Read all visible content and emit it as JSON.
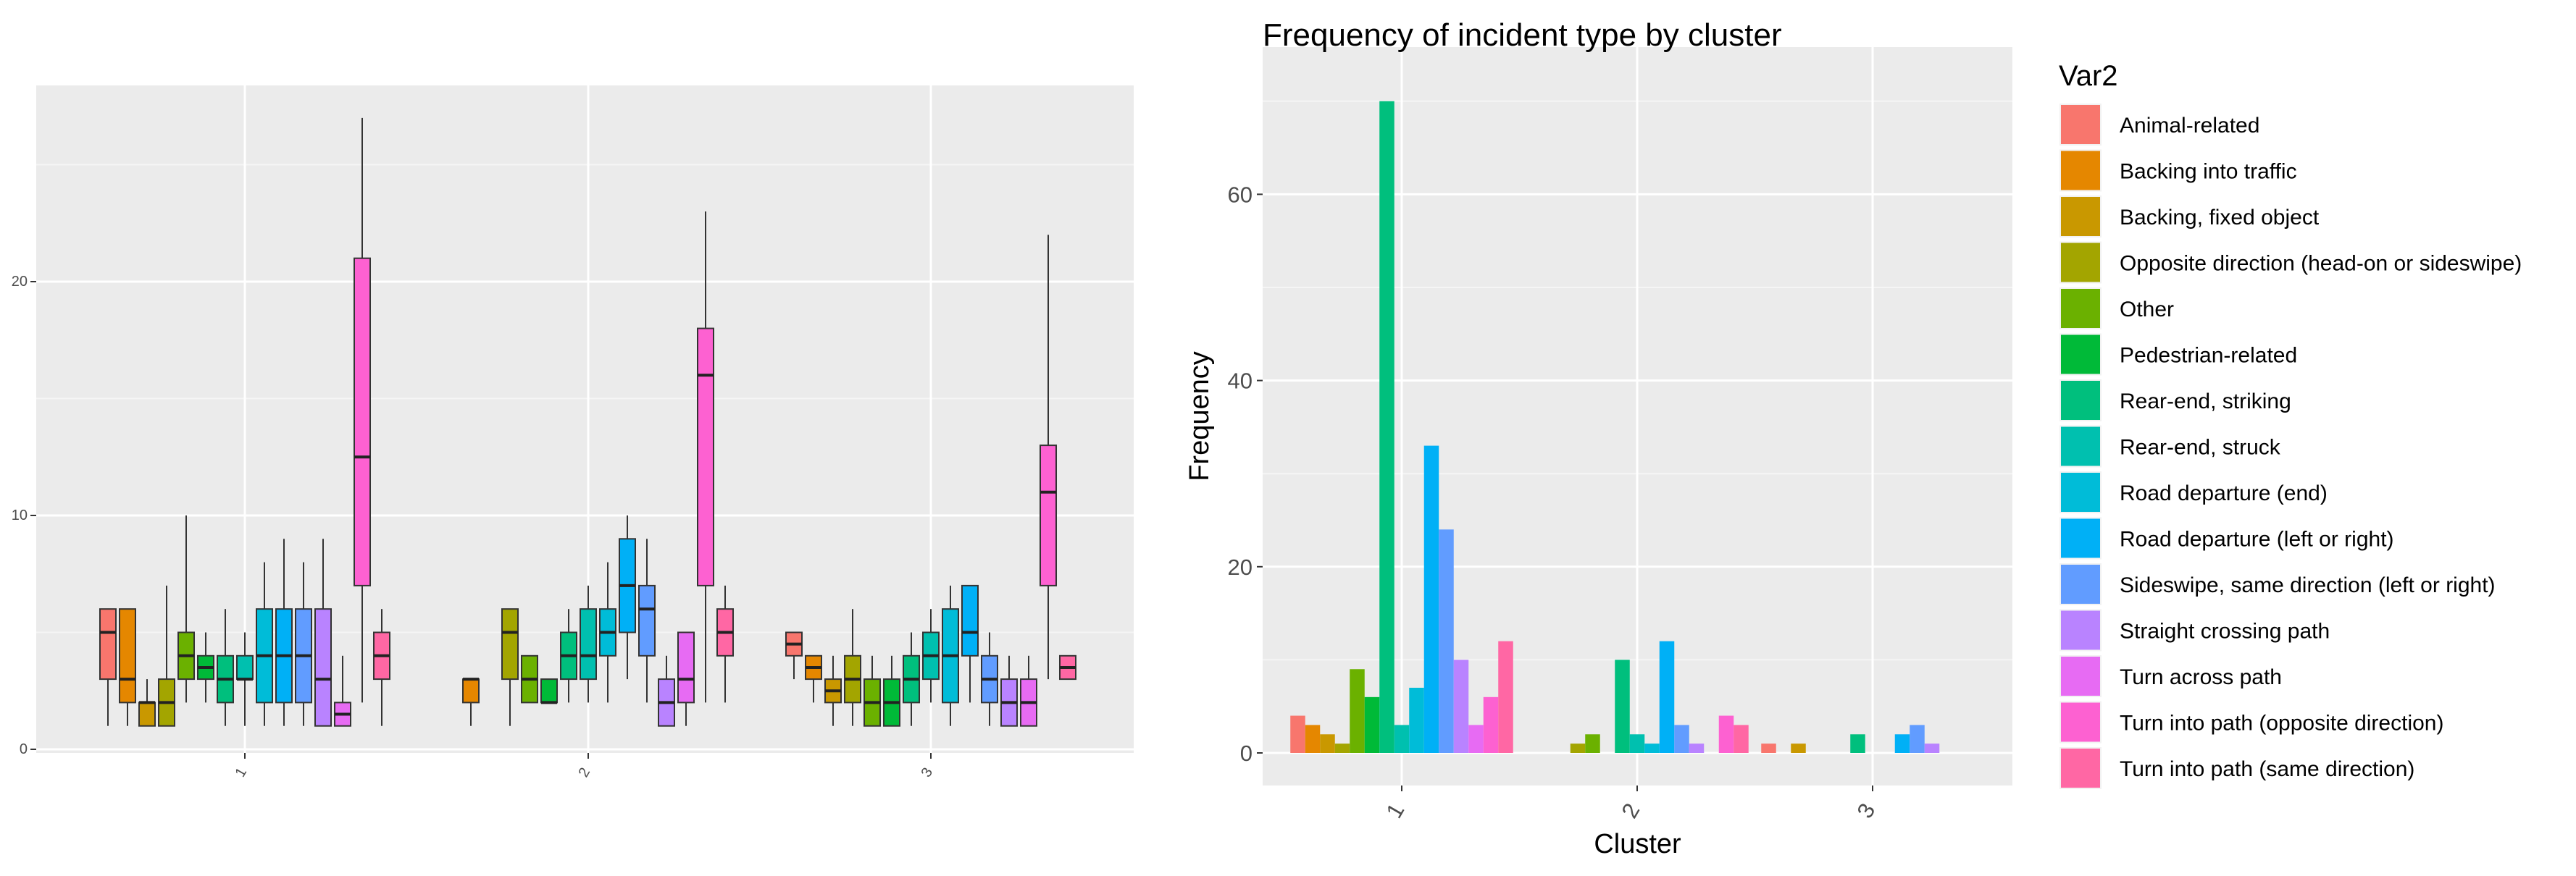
{
  "palette": {
    "panel_bg": "#EBEBEB",
    "grid_major": "#FFFFFF",
    "grid_minor": "#F5F5F5",
    "text": "#000000",
    "tick_text": "#4D4D4D"
  },
  "chart_data": [
    {
      "type": "boxplot",
      "title": "",
      "xlabel": "",
      "ylabel": "",
      "categories": [
        "1",
        "2",
        "3"
      ],
      "ylim": [
        0,
        28
      ],
      "yticks": [
        0,
        10,
        20
      ],
      "grid": true,
      "color_groups": [
        "Animal-related",
        "Backing into traffic",
        "Backing, fixed object",
        "Opposite direction (head-on or sideswipe)",
        "Other",
        "Pedestrian-related",
        "Rear-end, striking",
        "Rear-end, struck",
        "Road departure (end)",
        "Road departure (left or right)",
        "Sideswipe, same direction (left or right)",
        "Straight crossing path",
        "Turn across path",
        "Turn into path (opposite direction)",
        "Turn into path (same direction)"
      ],
      "boxes": [
        {
          "cluster": "1",
          "group": 0,
          "q1": 3,
          "median": 5,
          "q3": 6,
          "whisker_low": 1,
          "whisker_high": 6
        },
        {
          "cluster": "1",
          "group": 1,
          "q1": 2,
          "median": 3,
          "q3": 6,
          "whisker_low": 1,
          "whisker_high": 6
        },
        {
          "cluster": "1",
          "group": 2,
          "q1": 1,
          "median": 2,
          "q3": 2,
          "whisker_low": 1,
          "whisker_high": 3
        },
        {
          "cluster": "1",
          "group": 3,
          "q1": 1,
          "median": 2,
          "q3": 3,
          "whisker_low": 1,
          "whisker_high": 7
        },
        {
          "cluster": "1",
          "group": 4,
          "q1": 3,
          "median": 4,
          "q3": 5,
          "whisker_low": 2,
          "whisker_high": 10
        },
        {
          "cluster": "1",
          "group": 5,
          "q1": 3,
          "median": 3.5,
          "q3": 4,
          "whisker_low": 2,
          "whisker_high": 5
        },
        {
          "cluster": "1",
          "group": 6,
          "q1": 2,
          "median": 3,
          "q3": 4,
          "whisker_low": 1,
          "whisker_high": 6
        },
        {
          "cluster": "1",
          "group": 7,
          "q1": 3,
          "median": 3,
          "q3": 4,
          "whisker_low": 1,
          "whisker_high": 5
        },
        {
          "cluster": "1",
          "group": 8,
          "q1": 2,
          "median": 4,
          "q3": 6,
          "whisker_low": 1,
          "whisker_high": 8
        },
        {
          "cluster": "1",
          "group": 9,
          "q1": 2,
          "median": 4,
          "q3": 6,
          "whisker_low": 1,
          "whisker_high": 9
        },
        {
          "cluster": "1",
          "group": 10,
          "q1": 2,
          "median": 4,
          "q3": 6,
          "whisker_low": 1,
          "whisker_high": 8
        },
        {
          "cluster": "1",
          "group": 11,
          "q1": 1,
          "median": 3,
          "q3": 6,
          "whisker_low": 1,
          "whisker_high": 9
        },
        {
          "cluster": "1",
          "group": 12,
          "q1": 1,
          "median": 1.5,
          "q3": 2,
          "whisker_low": 1,
          "whisker_high": 4
        },
        {
          "cluster": "1",
          "group": 13,
          "q1": 7,
          "median": 12.5,
          "q3": 21,
          "whisker_low": 2,
          "whisker_high": 27
        },
        {
          "cluster": "1",
          "group": 14,
          "q1": 3,
          "median": 4,
          "q3": 5,
          "whisker_low": 1,
          "whisker_high": 6
        },
        {
          "cluster": "2",
          "group": 1,
          "q1": 2,
          "median": 3,
          "q3": 3,
          "whisker_low": 1,
          "whisker_high": 3
        },
        {
          "cluster": "2",
          "group": 3,
          "q1": 3,
          "median": 5,
          "q3": 6,
          "whisker_low": 1,
          "whisker_high": 6
        },
        {
          "cluster": "2",
          "group": 4,
          "q1": 2,
          "median": 3,
          "q3": 4,
          "whisker_low": 2,
          "whisker_high": 4
        },
        {
          "cluster": "2",
          "group": 5,
          "q1": 2,
          "median": 2,
          "q3": 3,
          "whisker_low": 2,
          "whisker_high": 3
        },
        {
          "cluster": "2",
          "group": 6,
          "q1": 3,
          "median": 4,
          "q3": 5,
          "whisker_low": 2,
          "whisker_high": 6
        },
        {
          "cluster": "2",
          "group": 7,
          "q1": 3,
          "median": 4,
          "q3": 6,
          "whisker_low": 2,
          "whisker_high": 7
        },
        {
          "cluster": "2",
          "group": 8,
          "q1": 4,
          "median": 5,
          "q3": 6,
          "whisker_low": 2,
          "whisker_high": 8
        },
        {
          "cluster": "2",
          "group": 9,
          "q1": 5,
          "median": 7,
          "q3": 9,
          "whisker_low": 3,
          "whisker_high": 10
        },
        {
          "cluster": "2",
          "group": 10,
          "q1": 4,
          "median": 6,
          "q3": 7,
          "whisker_low": 2,
          "whisker_high": 9
        },
        {
          "cluster": "2",
          "group": 11,
          "q1": 1,
          "median": 2,
          "q3": 3,
          "whisker_low": 1,
          "whisker_high": 4
        },
        {
          "cluster": "2",
          "group": 12,
          "q1": 2,
          "median": 3,
          "q3": 5,
          "whisker_low": 1,
          "whisker_high": 5
        },
        {
          "cluster": "2",
          "group": 13,
          "q1": 7,
          "median": 16,
          "q3": 18,
          "whisker_low": 2,
          "whisker_high": 23
        },
        {
          "cluster": "2",
          "group": 14,
          "q1": 4,
          "median": 5,
          "q3": 6,
          "whisker_low": 2,
          "whisker_high": 7
        },
        {
          "cluster": "3",
          "group": 0,
          "q1": 4,
          "median": 4.5,
          "q3": 5,
          "whisker_low": 3,
          "whisker_high": 5
        },
        {
          "cluster": "3",
          "group": 1,
          "q1": 3,
          "median": 3.5,
          "q3": 4,
          "whisker_low": 2,
          "whisker_high": 4
        },
        {
          "cluster": "3",
          "group": 2,
          "q1": 2,
          "median": 2.5,
          "q3": 3,
          "whisker_low": 1,
          "whisker_high": 4
        },
        {
          "cluster": "3",
          "group": 3,
          "q1": 2,
          "median": 3,
          "q3": 4,
          "whisker_low": 1,
          "whisker_high": 6
        },
        {
          "cluster": "3",
          "group": 4,
          "q1": 1,
          "median": 2,
          "q3": 3,
          "whisker_low": 1,
          "whisker_high": 4
        },
        {
          "cluster": "3",
          "group": 5,
          "q1": 1,
          "median": 2,
          "q3": 3,
          "whisker_low": 1,
          "whisker_high": 4
        },
        {
          "cluster": "3",
          "group": 6,
          "q1": 2,
          "median": 3,
          "q3": 4,
          "whisker_low": 1,
          "whisker_high": 5
        },
        {
          "cluster": "3",
          "group": 7,
          "q1": 3,
          "median": 4,
          "q3": 5,
          "whisker_low": 2,
          "whisker_high": 6
        },
        {
          "cluster": "3",
          "group": 8,
          "q1": 2,
          "median": 4,
          "q3": 6,
          "whisker_low": 1,
          "whisker_high": 7
        },
        {
          "cluster": "3",
          "group": 9,
          "q1": 4,
          "median": 5,
          "q3": 7,
          "whisker_low": 2,
          "whisker_high": 7
        },
        {
          "cluster": "3",
          "group": 10,
          "q1": 2,
          "median": 3,
          "q3": 4,
          "whisker_low": 1,
          "whisker_high": 5
        },
        {
          "cluster": "3",
          "group": 11,
          "q1": 1,
          "median": 2,
          "q3": 3,
          "whisker_low": 1,
          "whisker_high": 4
        },
        {
          "cluster": "3",
          "group": 12,
          "q1": 1,
          "median": 2,
          "q3": 3,
          "whisker_low": 1,
          "whisker_high": 4
        },
        {
          "cluster": "3",
          "group": 13,
          "q1": 7,
          "median": 11,
          "q3": 13,
          "whisker_low": 3,
          "whisker_high": 22
        },
        {
          "cluster": "3",
          "group": 14,
          "q1": 3,
          "median": 3.5,
          "q3": 4,
          "whisker_low": 3,
          "whisker_high": 4
        }
      ]
    },
    {
      "type": "bar",
      "title": "Frequency of incident type by cluster",
      "xlabel": "Cluster",
      "ylabel": "Frequency",
      "categories": [
        "1",
        "2",
        "3"
      ],
      "ylim": [
        0,
        70
      ],
      "yticks": [
        0,
        20,
        40,
        60
      ],
      "grid": true,
      "legend_title": "Var2",
      "legend_position": "right",
      "series": [
        {
          "name": "Animal-related",
          "color": "#F8766D",
          "values": [
            4,
            0,
            1
          ]
        },
        {
          "name": "Backing into traffic",
          "color": "#E58700",
          "values": [
            3,
            0,
            0
          ]
        },
        {
          "name": "Backing, fixed object",
          "color": "#C99800",
          "values": [
            2,
            0,
            1
          ]
        },
        {
          "name": "Opposite direction (head-on or sideswipe)",
          "color": "#A3A500",
          "values": [
            1,
            1,
            0
          ]
        },
        {
          "name": "Other",
          "color": "#6BB100",
          "values": [
            9,
            2,
            0
          ]
        },
        {
          "name": "Pedestrian-related",
          "color": "#00BA38",
          "values": [
            6,
            0,
            0
          ]
        },
        {
          "name": "Rear-end, striking",
          "color": "#00BF7D",
          "values": [
            70,
            10,
            2
          ]
        },
        {
          "name": "Rear-end, struck",
          "color": "#00C0AF",
          "values": [
            3,
            2,
            0
          ]
        },
        {
          "name": "Road departure (end)",
          "color": "#00BCD8",
          "values": [
            7,
            1,
            0
          ]
        },
        {
          "name": "Road departure (left or right)",
          "color": "#00B0F6",
          "values": [
            33,
            12,
            2
          ]
        },
        {
          "name": "Sideswipe, same direction (left or right)",
          "color": "#619CFF",
          "values": [
            24,
            3,
            3
          ]
        },
        {
          "name": "Straight crossing path",
          "color": "#B983FF",
          "values": [
            10,
            1,
            1
          ]
        },
        {
          "name": "Turn across path",
          "color": "#E76BF3",
          "values": [
            3,
            0,
            0
          ]
        },
        {
          "name": "Turn into path (opposite direction)",
          "color": "#FD61D1",
          "values": [
            6,
            4,
            0
          ]
        },
        {
          "name": "Turn into path (same direction)",
          "color": "#FF67A4",
          "values": [
            12,
            3,
            0
          ]
        }
      ]
    }
  ]
}
